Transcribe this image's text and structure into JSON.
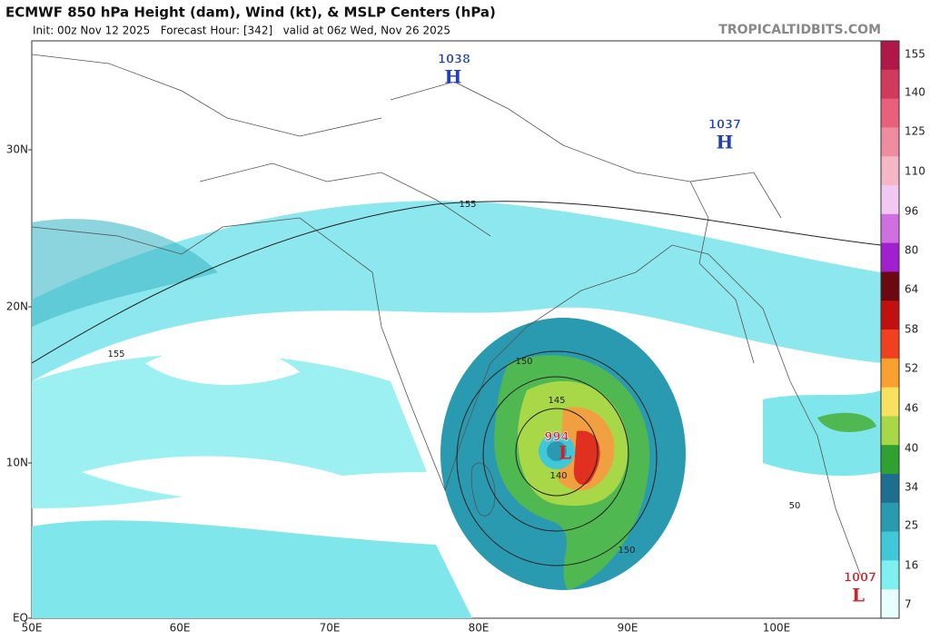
{
  "header": {
    "title": "ECMWF 850 hPa Height (dam), Wind (kt), & MSLP Centers (hPa)",
    "subtitle": "Init: 00z Nov 12 2025   Forecast Hour: [342]   valid at 06z Wed, Nov 26 2025",
    "source": "TROPICALTIDBITS.COM"
  },
  "map": {
    "lat_labels": [
      "30N",
      "20N",
      "10N",
      "EQ"
    ],
    "lon_labels": [
      "50E",
      "60E",
      "70E",
      "80E",
      "90E",
      "100E"
    ],
    "centers": [
      {
        "value": "1038",
        "letter": "H",
        "color": "#1f3fbf"
      },
      {
        "value": "1037",
        "letter": "H",
        "color": "#1f3fbf"
      },
      {
        "value": "994",
        "letter": "L",
        "color": "#d0202a"
      },
      {
        "value": "1007",
        "letter": "L",
        "color": "#d0202a"
      }
    ],
    "contour_labels": [
      "155",
      "155",
      "150",
      "145",
      "140",
      "150",
      "50"
    ]
  },
  "colorbar": {
    "labels": [
      "155",
      "140",
      "125",
      "110",
      "96",
      "80",
      "64",
      "58",
      "52",
      "46",
      "40",
      "34",
      "25",
      "16",
      "7"
    ],
    "colors": [
      "#b0184a",
      "#d23a5c",
      "#e8607a",
      "#f08ca0",
      "#f5b6c6",
      "#f0c8f0",
      "#d070e0",
      "#a020d0",
      "#6a0a10",
      "#c01010",
      "#f04020",
      "#f8a030",
      "#f8e060",
      "#a8d848",
      "#30a030",
      "#1e6e90",
      "#2a9ab0",
      "#40c8d8",
      "#7ef0f0",
      "#e8ffff"
    ]
  }
}
